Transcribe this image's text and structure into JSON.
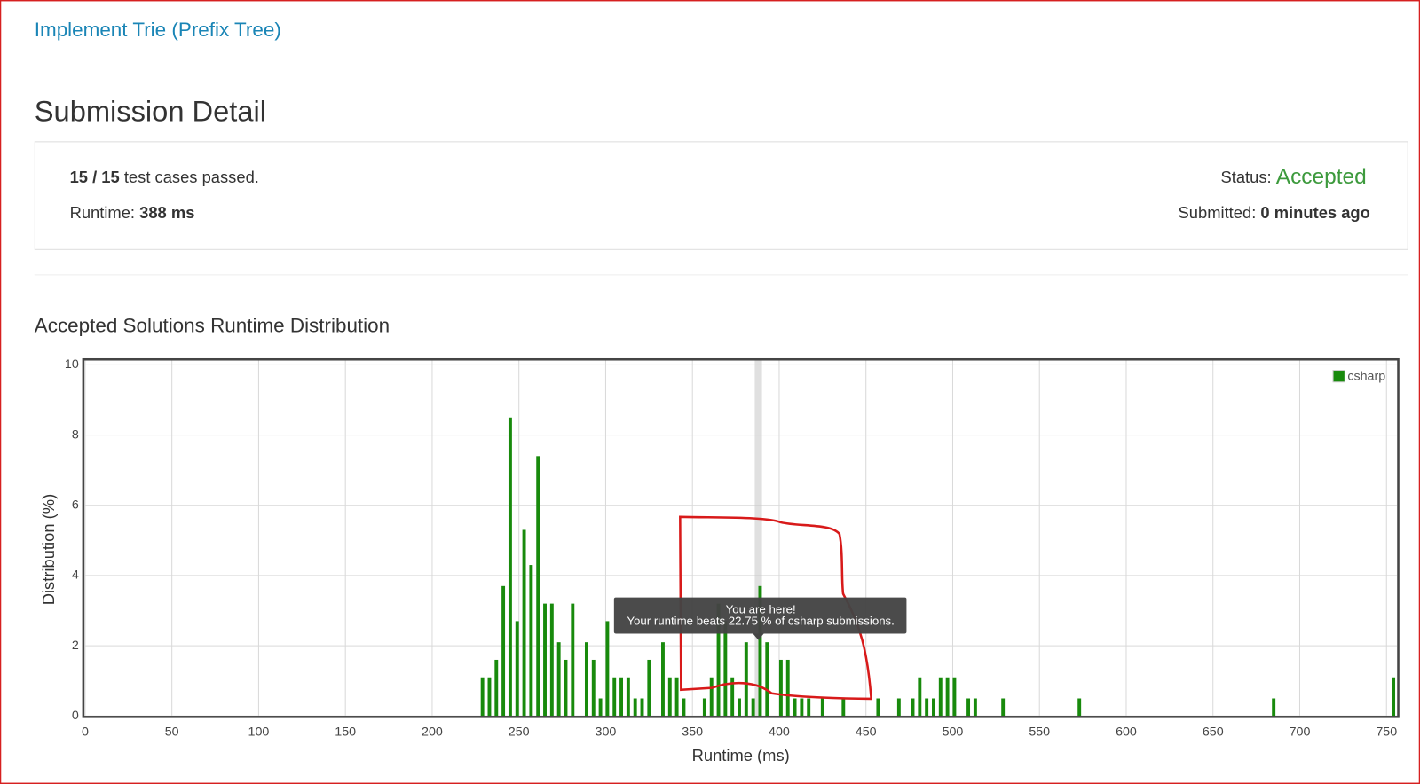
{
  "header": {
    "problem_link": "Implement Trie (Prefix Tree)",
    "title": "Submission Detail"
  },
  "summary": {
    "cases": "15 / 15",
    "cases_text": "test cases passed.",
    "runtime_label": "Runtime:",
    "runtime": "388 ms",
    "status_label": "Status:",
    "status": "Accepted",
    "submitted_label": "Submitted:",
    "submitted": "0 minutes ago"
  },
  "chart_data": {
    "type": "bar",
    "title": "Accepted Solutions Runtime Distribution",
    "x_label": "Runtime (ms)",
    "y_label": "Distribution (%)",
    "series": [
      {
        "name": "csharp",
        "color": "#188a0c",
        "x": [
          229,
          233,
          237,
          241,
          245,
          249,
          253,
          257,
          261,
          265,
          269,
          273,
          277,
          281,
          289,
          293,
          297,
          301,
          305,
          309,
          313,
          317,
          321,
          325,
          333,
          337,
          341,
          345,
          357,
          361,
          365,
          369,
          373,
          377,
          381,
          385,
          389,
          393,
          401,
          405,
          409,
          413,
          417,
          425,
          437,
          457,
          469,
          477,
          481,
          485,
          489,
          493,
          497,
          501,
          509,
          513,
          529,
          573,
          685,
          754
        ],
        "values": [
          1.1,
          1.1,
          1.6,
          3.7,
          8.5,
          2.7,
          5.3,
          4.3,
          7.4,
          3.2,
          3.2,
          2.1,
          1.6,
          3.2,
          2.1,
          1.6,
          0.5,
          2.7,
          1.1,
          1.1,
          1.1,
          0.5,
          0.5,
          1.6,
          2.1,
          1.1,
          1.1,
          0.5,
          0.5,
          1.1,
          3.2,
          2.7,
          1.1,
          0.5,
          2.1,
          0.5,
          3.7,
          2.1,
          1.6,
          1.6,
          0.5,
          0.5,
          0.5,
          0.5,
          0.5,
          0.5,
          0.5,
          0.5,
          1.1,
          0.5,
          0.5,
          1.1,
          1.1,
          1.1,
          0.5,
          0.5,
          0.5,
          0.5,
          0.5,
          1.1
        ]
      }
    ],
    "xlim": [
      0,
      756
    ],
    "ylim": [
      0,
      10
    ],
    "xticks": [
      0,
      50,
      100,
      150,
      200,
      250,
      300,
      350,
      400,
      450,
      500,
      550,
      600,
      650,
      700,
      750
    ],
    "yticks": [
      0,
      2,
      4,
      6,
      8,
      10
    ],
    "grid": true,
    "legend": "upper right",
    "marker_x": 388,
    "tooltip": [
      "You are here!",
      "Your runtime beats 22.75 % of csharp submissions."
    ]
  }
}
